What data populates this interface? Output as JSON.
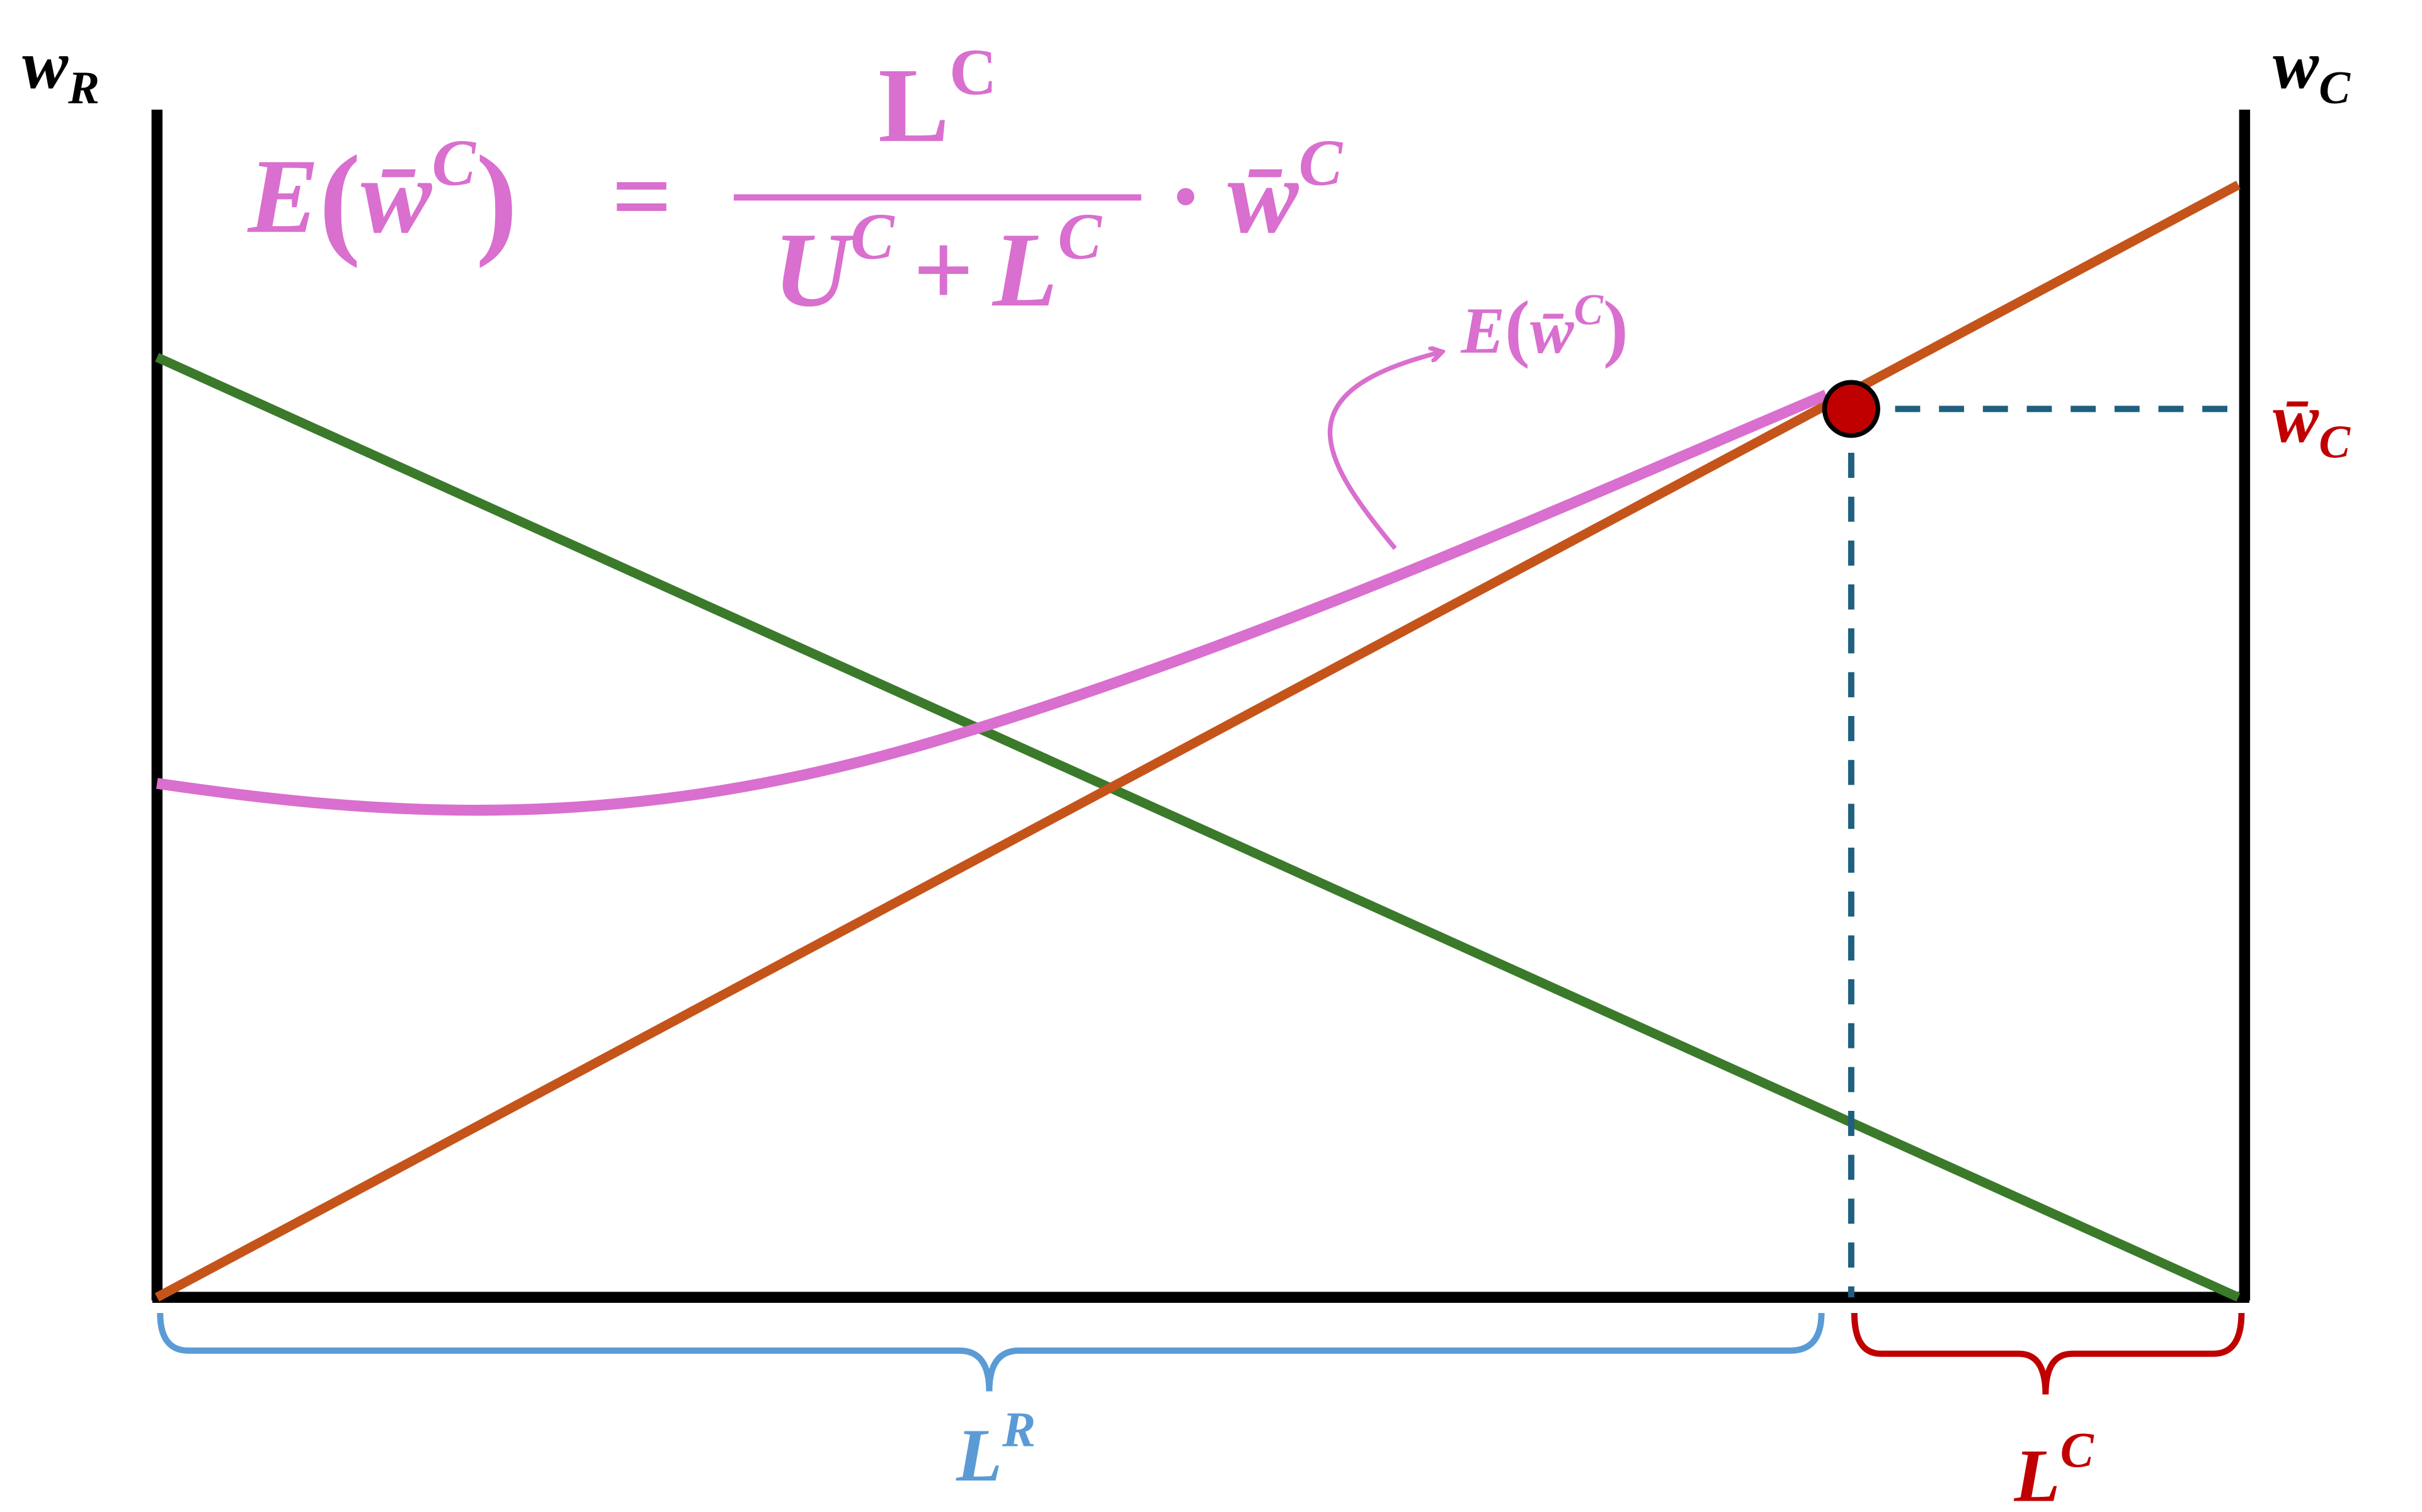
{
  "axes": {
    "left_label": {
      "base": "w",
      "sub": "R"
    },
    "right_label": {
      "base": "w",
      "sub": "C"
    }
  },
  "formula": {
    "lhs": {
      "func": "E",
      "open": "(",
      "var": "w̄",
      "sup": "C",
      "close": ")"
    },
    "equals": "=",
    "numerator": {
      "base": "L",
      "sup": "C"
    },
    "denominator": {
      "u": "U",
      "u_sup": "C",
      "plus": "+",
      "l": "L",
      "l_sup": "C"
    },
    "dot": "·",
    "rhs": {
      "base": "w̄",
      "sup": "C"
    }
  },
  "curve_label": {
    "func": "E",
    "open": "(",
    "var": "w̄",
    "sup": "C",
    "close": ")"
  },
  "equilibrium_label": {
    "base": "w̄",
    "sub": "C"
  },
  "braces": {
    "left": {
      "base": "L",
      "sup": "R"
    },
    "right": {
      "base": "L",
      "sup": "C"
    }
  }
}
